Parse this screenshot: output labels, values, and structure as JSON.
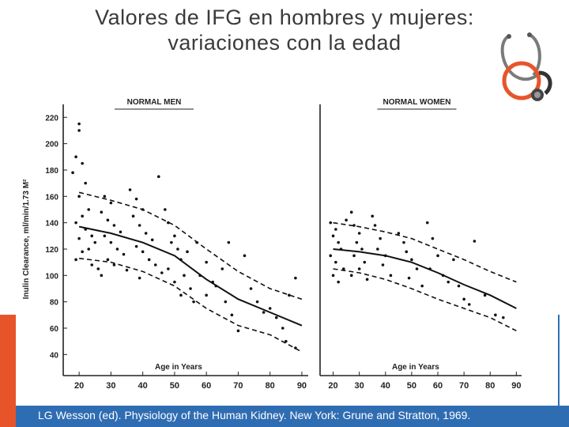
{
  "slide": {
    "title_line1": "Valores de IFG en hombres y mujeres:",
    "title_line2": "variaciones con la edad",
    "citation": "LG Wesson (ed). Physiology of the Human Kidney. New York: Grune and Stratton, 1969.",
    "accent_color": "#e8542a",
    "footer_color": "#2f6db3"
  },
  "chart_data": [
    {
      "type": "scatter",
      "title": "NORMAL MEN",
      "xlabel": "Age in Years",
      "ylabel": "Inulin Clearance, ml/min/1.73 M²",
      "x_ticks": [
        20,
        30,
        40,
        50,
        60,
        70,
        80,
        90
      ],
      "y_ticks": [
        40,
        60,
        80,
        100,
        120,
        140,
        160,
        180,
        200,
        220
      ],
      "xlim": [
        15,
        92
      ],
      "ylim": [
        30,
        225
      ],
      "series": [
        {
          "role": "mean",
          "x": [
            20,
            30,
            40,
            50,
            60,
            70,
            80,
            90
          ],
          "y": [
            137,
            132,
            125,
            115,
            97,
            82,
            72,
            62
          ]
        },
        {
          "role": "upper",
          "x": [
            20,
            30,
            40,
            50,
            60,
            70,
            80,
            90
          ],
          "y": [
            163,
            157,
            150,
            138,
            120,
            103,
            90,
            82
          ]
        },
        {
          "role": "lower",
          "x": [
            20,
            30,
            40,
            50,
            60,
            70,
            80,
            90
          ],
          "y": [
            113,
            110,
            103,
            92,
            75,
            62,
            55,
            42
          ]
        }
      ],
      "points": [
        [
          20,
          215
        ],
        [
          20,
          210
        ],
        [
          19,
          190
        ],
        [
          21,
          185
        ],
        [
          18,
          178
        ],
        [
          22,
          170
        ],
        [
          20,
          160
        ],
        [
          23,
          150
        ],
        [
          21,
          145
        ],
        [
          19,
          140
        ],
        [
          22,
          135
        ],
        [
          24,
          130
        ],
        [
          20,
          128
        ],
        [
          25,
          125
        ],
        [
          23,
          120
        ],
        [
          21,
          118
        ],
        [
          19,
          112
        ],
        [
          24,
          108
        ],
        [
          26,
          105
        ],
        [
          28,
          160
        ],
        [
          30,
          155
        ],
        [
          27,
          148
        ],
        [
          29,
          142
        ],
        [
          31,
          138
        ],
        [
          33,
          133
        ],
        [
          28,
          130
        ],
        [
          30,
          125
        ],
        [
          32,
          120
        ],
        [
          34,
          116
        ],
        [
          29,
          112
        ],
        [
          31,
          108
        ],
        [
          35,
          104
        ],
        [
          27,
          100
        ],
        [
          36,
          165
        ],
        [
          38,
          158
        ],
        [
          40,
          150
        ],
        [
          37,
          145
        ],
        [
          39,
          138
        ],
        [
          41,
          132
        ],
        [
          43,
          127
        ],
        [
          38,
          122
        ],
        [
          40,
          118
        ],
        [
          42,
          112
        ],
        [
          44,
          108
        ],
        [
          46,
          102
        ],
        [
          39,
          98
        ],
        [
          45,
          175
        ],
        [
          47,
          150
        ],
        [
          48,
          140
        ],
        [
          50,
          130
        ],
        [
          49,
          125
        ],
        [
          51,
          120
        ],
        [
          52,
          112
        ],
        [
          48,
          105
        ],
        [
          53,
          100
        ],
        [
          50,
          95
        ],
        [
          55,
          90
        ],
        [
          52,
          85
        ],
        [
          54,
          118
        ],
        [
          57,
          125
        ],
        [
          60,
          110
        ],
        [
          58,
          100
        ],
        [
          62,
          95
        ],
        [
          56,
          80
        ],
        [
          60,
          85
        ],
        [
          65,
          105
        ],
        [
          63,
          92
        ],
        [
          66,
          80
        ],
        [
          68,
          70
        ],
        [
          70,
          58
        ],
        [
          67,
          125
        ],
        [
          72,
          115
        ],
        [
          74,
          90
        ],
        [
          76,
          80
        ],
        [
          78,
          72
        ],
        [
          80,
          75
        ],
        [
          82,
          68
        ],
        [
          84,
          60
        ],
        [
          86,
          85
        ],
        [
          88,
          98
        ],
        [
          85,
          50
        ],
        [
          88,
          45
        ]
      ]
    },
    {
      "type": "scatter",
      "title": "NORMAL WOMEN",
      "xlabel": "Age in Years",
      "ylabel": "",
      "x_ticks": [
        20,
        30,
        40,
        50,
        60,
        70,
        80,
        90
      ],
      "xlim": [
        15,
        92
      ],
      "ylim": [
        30,
        225
      ],
      "series": [
        {
          "role": "mean",
          "x": [
            20,
            30,
            40,
            50,
            60,
            70,
            80,
            90
          ],
          "y": [
            120,
            118,
            115,
            110,
            102,
            93,
            85,
            75
          ]
        },
        {
          "role": "upper",
          "x": [
            20,
            30,
            40,
            50,
            60,
            70,
            80,
            90
          ],
          "y": [
            140,
            137,
            133,
            128,
            120,
            112,
            103,
            95
          ]
        },
        {
          "role": "lower",
          "x": [
            20,
            30,
            40,
            50,
            60,
            70,
            80,
            90
          ],
          "y": [
            105,
            102,
            97,
            90,
            82,
            75,
            68,
            58
          ]
        }
      ],
      "points": [
        [
          19,
          140
        ],
        [
          21,
          135
        ],
        [
          20,
          130
        ],
        [
          22,
          125
        ],
        [
          23,
          120
        ],
        [
          19,
          115
        ],
        [
          21,
          110
        ],
        [
          24,
          105
        ],
        [
          20,
          100
        ],
        [
          22,
          95
        ],
        [
          25,
          142
        ],
        [
          27,
          148
        ],
        [
          28,
          138
        ],
        [
          30,
          132
        ],
        [
          29,
          125
        ],
        [
          31,
          120
        ],
        [
          28,
          115
        ],
        [
          32,
          110
        ],
        [
          30,
          105
        ],
        [
          27,
          100
        ],
        [
          33,
          97
        ],
        [
          35,
          145
        ],
        [
          36,
          138
        ],
        [
          38,
          128
        ],
        [
          37,
          120
        ],
        [
          40,
          115
        ],
        [
          39,
          108
        ],
        [
          42,
          100
        ],
        [
          45,
          132
        ],
        [
          47,
          125
        ],
        [
          48,
          118
        ],
        [
          50,
          112
        ],
        [
          52,
          105
        ],
        [
          49,
          98
        ],
        [
          54,
          92
        ],
        [
          56,
          140
        ],
        [
          58,
          128
        ],
        [
          60,
          115
        ],
        [
          57,
          105
        ],
        [
          62,
          100
        ],
        [
          64,
          95
        ],
        [
          66,
          112
        ],
        [
          68,
          92
        ],
        [
          70,
          82
        ],
        [
          72,
          78
        ],
        [
          74,
          126
        ],
        [
          78,
          85
        ],
        [
          82,
          70
        ],
        [
          85,
          68
        ]
      ]
    }
  ]
}
